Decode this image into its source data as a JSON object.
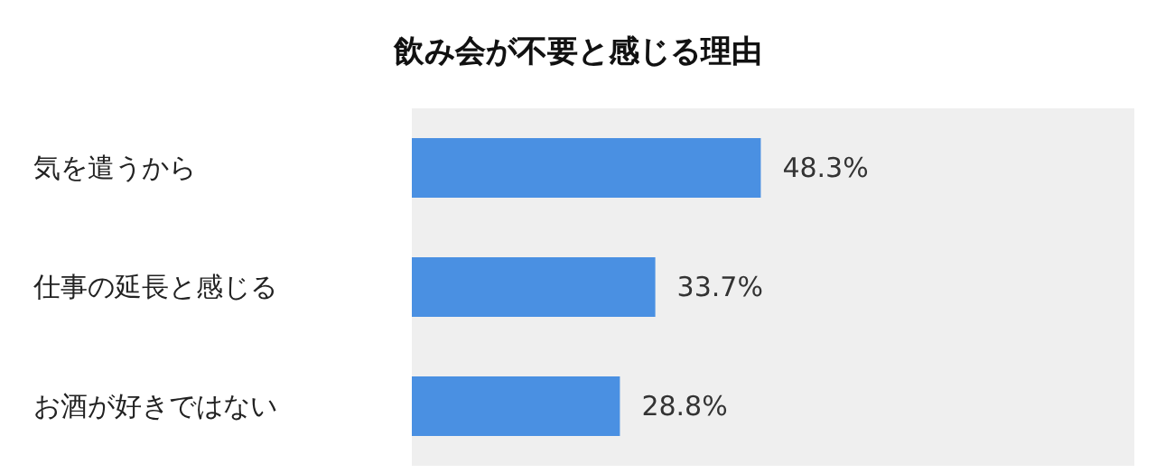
{
  "chart_data": {
    "type": "bar",
    "orientation": "horizontal",
    "title": "飲み会が不要と感じる理由",
    "categories": [
      "気を遣うから",
      "仕事の延長と感じる",
      "お酒が好きではない"
    ],
    "values": [
      48.3,
      33.7,
      28.8
    ],
    "color": "#4a90e2",
    "value_labels": [
      "48.3%",
      "33.7%",
      "28.8%"
    ],
    "xlim": [
      0,
      100
    ],
    "tick_labels": "y"
  }
}
